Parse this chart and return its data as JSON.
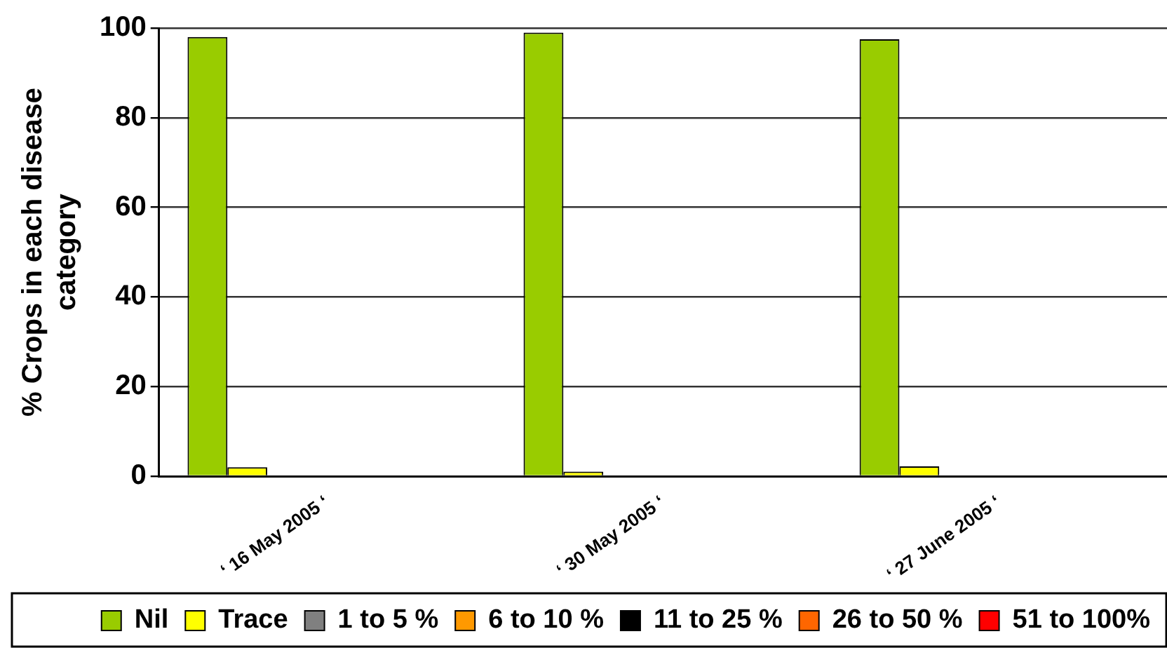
{
  "chart_data": {
    "type": "bar",
    "ylabel": "% Crops in each disease category",
    "categories": [
      "‘ 16 May 2005 ‘",
      "‘ 30 May 2005 ‘",
      "‘ 27 June 2005 ‘"
    ],
    "series": [
      {
        "name": "Nil",
        "color": "#99cc00",
        "values": [
          98,
          99,
          97.5
        ]
      },
      {
        "name": "Trace",
        "color": "#ffff00",
        "values": [
          2,
          1,
          2.2
        ]
      },
      {
        "name": "1 to 5 %",
        "color": "#808080",
        "values": [
          0,
          0,
          0
        ]
      },
      {
        "name": "6 to 10 %",
        "color": "#ff9900",
        "values": [
          0,
          0,
          0
        ]
      },
      {
        "name": "11 to 25 %",
        "color": "#000000",
        "values": [
          0,
          0,
          0
        ]
      },
      {
        "name": "26 to 50 %",
        "color": "#ff6600",
        "values": [
          0,
          0,
          0
        ]
      },
      {
        "name": "51 to 100%",
        "color": "#ff0000",
        "values": [
          0,
          0,
          0
        ]
      }
    ],
    "ylim": [
      0,
      100
    ],
    "yticks": [
      0,
      20,
      40,
      60,
      80,
      100
    ],
    "grid": "y",
    "legend": "bottom"
  }
}
